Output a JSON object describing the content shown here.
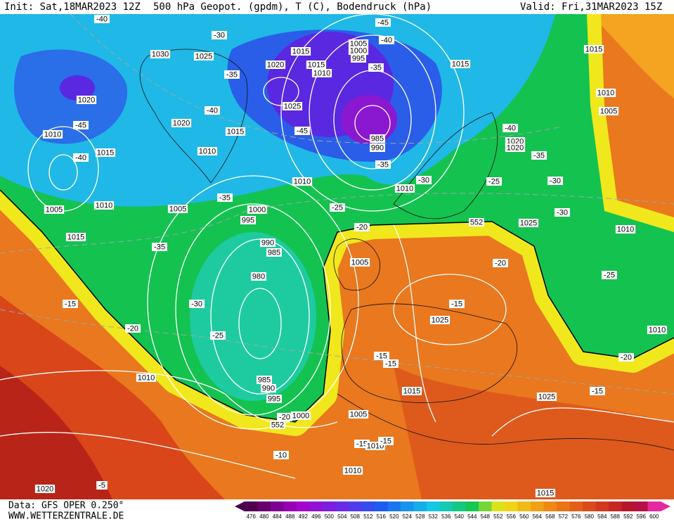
{
  "header": {
    "init": "Init: Sat,18MAR2023 12Z",
    "title": "500 hPa Geopot. (gpdm), T (C), Bodendruck (hPa)",
    "valid": "Valid: Fri,31MAR2023 15Z"
  },
  "map": {
    "labels": [
      "-40",
      "-30",
      "1030",
      "1025",
      "1015",
      "1005",
      "1000",
      "995",
      "-45",
      "-40",
      "1015",
      "1015",
      "1020",
      "1015",
      "1010",
      "-35",
      "-35",
      "1010",
      "1020",
      "1025",
      "-40",
      "1005",
      "1020",
      "-45",
      "1015",
      "-45",
      "985",
      "990",
      "-40",
      "1010",
      "1020",
      "1020",
      "-35",
      "1015",
      "1010",
      "-40",
      "-35",
      "1010",
      "-30",
      "-25",
      "-30",
      "1010",
      "-35",
      "-25",
      "1005",
      "1000",
      "995",
      "1005",
      "1010",
      "-30",
      "-20",
      "552",
      "1025",
      "1010",
      "1015",
      "990",
      "985",
      "-35",
      "1005",
      "-20",
      "-25",
      "980",
      "-30",
      "-15",
      "-15",
      "1025",
      "1010",
      "-20",
      "-25",
      "-15",
      "-15",
      "-20",
      "1010",
      "985",
      "990",
      "995",
      "1015",
      "-15",
      "1025",
      "1005",
      "1000",
      "-20",
      "552",
      "-15",
      "1010",
      "-15",
      "-10",
      "1010",
      "-5",
      "1020",
      "1015"
    ]
  },
  "color_scale": {
    "labels": [
      476,
      480,
      484,
      488,
      492,
      496,
      500,
      504,
      508,
      512,
      516,
      520,
      524,
      528,
      532,
      536,
      540,
      544,
      548,
      552,
      556,
      560,
      564,
      568,
      572,
      576,
      580,
      584,
      588,
      592,
      596,
      600
    ]
  },
  "footer": {
    "data": "Data: GFS OPER 0.250°",
    "site": "WWW.WETTERZENTRALE.DE"
  }
}
